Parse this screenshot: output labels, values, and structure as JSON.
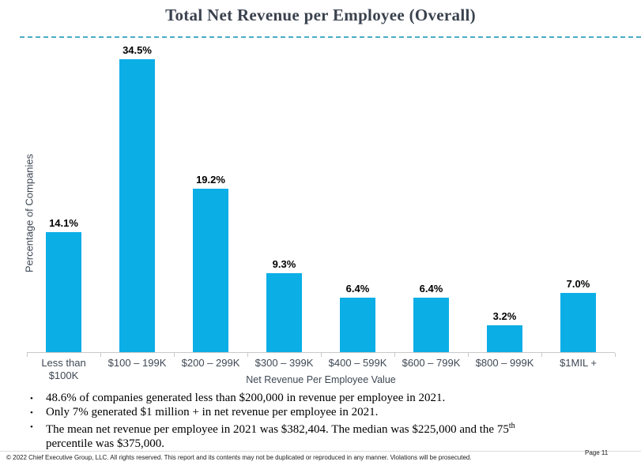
{
  "header": {
    "title": "Total Net Revenue per Employee (Overall)"
  },
  "chart_data": {
    "type": "bar",
    "title": "Total Net Revenue per Employee (Overall)",
    "categories": [
      "Less than\n$100K",
      "$100 – 199K",
      "$200 – 299K",
      "$300 – 399K",
      "$400 – 599K",
      "$600 – 799K",
      "$800 – 999K",
      "$1MIL +"
    ],
    "values": [
      14.1,
      34.5,
      19.2,
      9.3,
      6.4,
      6.4,
      3.2,
      7.0
    ],
    "labels": [
      "14.1%",
      "34.5%",
      "19.2%",
      "9.3%",
      "6.4%",
      "6.4%",
      "3.2%",
      "7.0%"
    ],
    "xlabel": "Net Revenue Per Employee Value",
    "ylabel": "Percentage of Companies",
    "ylim": [
      0,
      36.9
    ],
    "bar_color": "#0caee6",
    "grid": false,
    "legend": false
  },
  "bullets": {
    "0": "48.6% of companies generated less than $200,000 in revenue per employee in 2021.",
    "1": "Only 7% generated $1 million + in net revenue per employee in 2021.",
    "2_pre": "The mean net revenue per employee in 2021 was $382,404. The median was $225,000 and the 75",
    "2_sup": "th",
    "2_post": "percentile was $375,000."
  },
  "footer": {
    "copyright": "© 2022 Chief Executive Group, LLC. All rights reserved. This report and its contents may not be duplicated or reproduced in any manner. Violations will be prosecuted.",
    "page": "Page 11"
  },
  "colors": {
    "accent_bar": "#0caee6",
    "divider": "#4bacc6",
    "title_text": "#3a424e",
    "axis_text": "#3e4854",
    "axis_line": "#c9c9c9"
  }
}
